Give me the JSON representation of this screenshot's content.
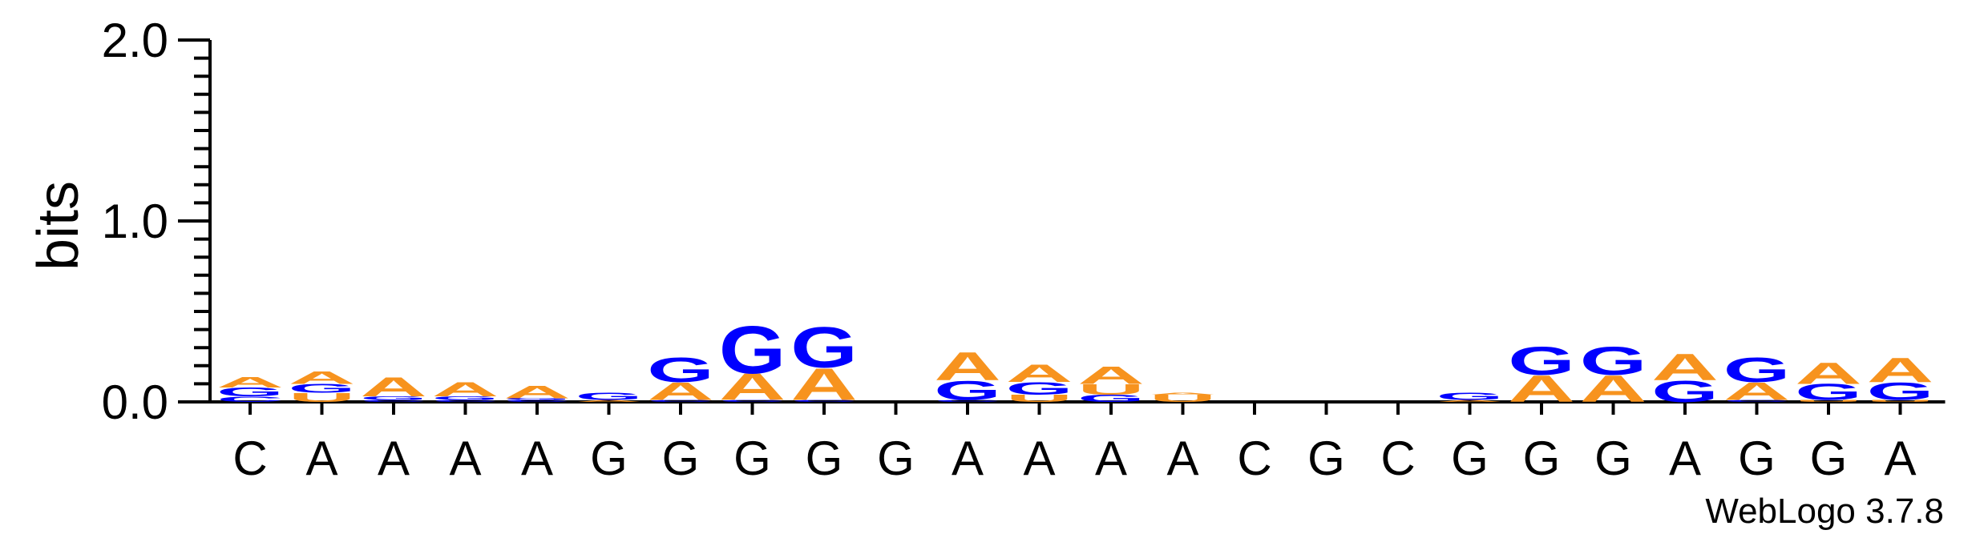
{
  "chart_data": {
    "type": "sequence-logo",
    "ylabel": "bits",
    "ylim": [
      0,
      2.0
    ],
    "yticks": [
      "0.0",
      "1.0",
      "2.0"
    ],
    "credit": "WebLogo 3.7.8",
    "colors": {
      "A": "#f7931e",
      "C": "#0000ff",
      "G": "#0000ff",
      "T": "#f7931e",
      "U": "#f7931e"
    },
    "positions": [
      {
        "label": "C",
        "stack": [
          {
            "letter": "C",
            "bits": 0.03
          },
          {
            "letter": "G",
            "bits": 0.05
          },
          {
            "letter": "A",
            "bits": 0.06
          }
        ]
      },
      {
        "label": "A",
        "stack": [
          {
            "letter": "U",
            "bits": 0.05
          },
          {
            "letter": "G",
            "bits": 0.05
          },
          {
            "letter": "A",
            "bits": 0.07
          }
        ]
      },
      {
        "label": "A",
        "stack": [
          {
            "letter": "C",
            "bits": 0.01
          },
          {
            "letter": "G",
            "bits": 0.02
          },
          {
            "letter": "A",
            "bits": 0.11
          }
        ]
      },
      {
        "label": "A",
        "stack": [
          {
            "letter": "C",
            "bits": 0.01
          },
          {
            "letter": "G",
            "bits": 0.02
          },
          {
            "letter": "A",
            "bits": 0.08
          }
        ]
      },
      {
        "label": "A",
        "stack": [
          {
            "letter": "C",
            "bits": 0.01
          },
          {
            "letter": "G",
            "bits": 0.01
          },
          {
            "letter": "A",
            "bits": 0.07
          }
        ]
      },
      {
        "label": "G",
        "stack": [
          {
            "letter": "A",
            "bits": 0.01
          },
          {
            "letter": "G",
            "bits": 0.04
          }
        ]
      },
      {
        "label": "G",
        "stack": [
          {
            "letter": "C",
            "bits": 0.01
          },
          {
            "letter": "A",
            "bits": 0.1
          },
          {
            "letter": "G",
            "bits": 0.14
          }
        ]
      },
      {
        "label": "G",
        "stack": [
          {
            "letter": "C",
            "bits": 0.01
          },
          {
            "letter": "A",
            "bits": 0.15
          },
          {
            "letter": "G",
            "bits": 0.27
          }
        ]
      },
      {
        "label": "G",
        "stack": [
          {
            "letter": "C",
            "bits": 0.01
          },
          {
            "letter": "A",
            "bits": 0.18
          },
          {
            "letter": "G",
            "bits": 0.23
          }
        ]
      },
      {
        "label": "G",
        "stack": []
      },
      {
        "label": "A",
        "stack": [
          {
            "letter": "C",
            "bits": 0.01
          },
          {
            "letter": "G",
            "bits": 0.11
          },
          {
            "letter": "A",
            "bits": 0.16
          }
        ]
      },
      {
        "label": "A",
        "stack": [
          {
            "letter": "U",
            "bits": 0.04
          },
          {
            "letter": "G",
            "bits": 0.07
          },
          {
            "letter": "A",
            "bits": 0.1
          }
        ]
      },
      {
        "label": "A",
        "stack": [
          {
            "letter": "G",
            "bits": 0.04
          },
          {
            "letter": "U",
            "bits": 0.06
          },
          {
            "letter": "A",
            "bits": 0.1
          }
        ]
      },
      {
        "label": "A",
        "stack": [
          {
            "letter": "U",
            "bits": 0.04
          },
          {
            "letter": "A",
            "bits": 0.01
          }
        ]
      },
      {
        "label": "C",
        "stack": []
      },
      {
        "label": "G",
        "stack": []
      },
      {
        "label": "C",
        "stack": []
      },
      {
        "label": "G",
        "stack": [
          {
            "letter": "A",
            "bits": 0.01
          },
          {
            "letter": "G",
            "bits": 0.04
          }
        ]
      },
      {
        "label": "G",
        "stack": [
          {
            "letter": "A",
            "bits": 0.15
          },
          {
            "letter": "G",
            "bits": 0.16
          }
        ]
      },
      {
        "label": "G",
        "stack": [
          {
            "letter": "A",
            "bits": 0.15
          },
          {
            "letter": "G",
            "bits": 0.16
          }
        ]
      },
      {
        "label": "A",
        "stack": [
          {
            "letter": "G",
            "bits": 0.12
          },
          {
            "letter": "A",
            "bits": 0.15
          }
        ]
      },
      {
        "label": "G",
        "stack": [
          {
            "letter": "C",
            "bits": 0.01
          },
          {
            "letter": "A",
            "bits": 0.1
          },
          {
            "letter": "G",
            "bits": 0.14
          }
        ]
      },
      {
        "label": "G",
        "stack": [
          {
            "letter": "U",
            "bits": 0.01
          },
          {
            "letter": "G",
            "bits": 0.09
          },
          {
            "letter": "A",
            "bits": 0.12
          }
        ]
      },
      {
        "label": "A",
        "stack": [
          {
            "letter": "U",
            "bits": 0.01
          },
          {
            "letter": "G",
            "bits": 0.1
          },
          {
            "letter": "A",
            "bits": 0.14
          }
        ]
      }
    ]
  }
}
